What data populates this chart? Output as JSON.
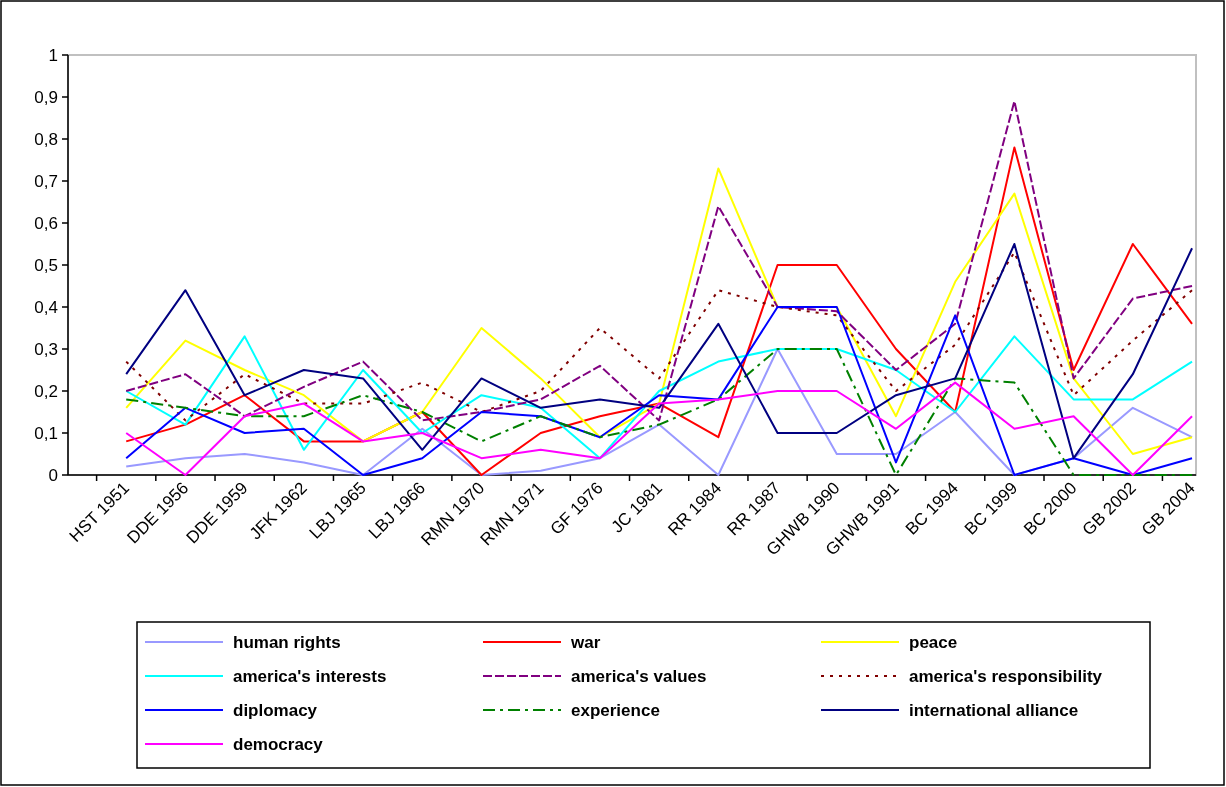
{
  "chart_data": {
    "type": "line",
    "categories": [
      "HST 1951",
      "DDE 1956",
      "DDE 1959",
      "JFK 1962",
      "LBJ 1965",
      "LBJ 1966",
      "RMN 1970",
      "RMN 1971",
      "GF 1976",
      "JC 1981",
      "RR 1984",
      "RR 1987",
      "GHWB 1990",
      "GHWB 1991",
      "BC 1994",
      "BC 1999",
      "BC 2000",
      "GB 2002",
      "GB 2004"
    ],
    "ylim": [
      0,
      1
    ],
    "yticks": [
      0,
      {
        "value": 0.1,
        "label": "0,1"
      },
      {
        "value": 0.2,
        "label": "0,2"
      },
      {
        "value": 0.3,
        "label": "0,3"
      },
      {
        "value": 0.4,
        "label": "0,4"
      },
      {
        "value": 0.5,
        "label": "0,5"
      },
      {
        "value": 0.6,
        "label": "0,6"
      },
      {
        "value": 0.7,
        "label": "0,7"
      },
      {
        "value": 0.8,
        "label": "0,8"
      },
      {
        "value": 0.9,
        "label": "0,9"
      },
      1
    ],
    "legend": "bottom",
    "grid": false,
    "marker": "none",
    "series": [
      {
        "name": "human rights",
        "color": "#9999ff",
        "line_style": "solid",
        "values": [
          0.02,
          0.04,
          0.05,
          0.03,
          0,
          0.11,
          0,
          0.01,
          0.04,
          0.12,
          0,
          0.3,
          0.05,
          0.05,
          0.15,
          0,
          0.04,
          0.16,
          0.09
        ]
      },
      {
        "name": "war",
        "color": "#ff0000",
        "line_style": "solid",
        "values": [
          0.08,
          0.12,
          0.19,
          0.08,
          0.08,
          0.15,
          0,
          0.1,
          0.14,
          0.17,
          0.09,
          0.5,
          0.5,
          0.3,
          0.15,
          0.78,
          0.25,
          0.55,
          0.36
        ]
      },
      {
        "name": "peace",
        "color": "#ffff00",
        "line_style": "solid",
        "values": [
          0.16,
          0.32,
          0.25,
          0.19,
          0.08,
          0.15,
          0.35,
          0.23,
          0.09,
          0.17,
          0.73,
          0.4,
          0.4,
          0.14,
          0.46,
          0.67,
          0.23,
          0.05,
          0.09
        ]
      },
      {
        "name": "america's interests",
        "color": "#00ffff",
        "line_style": "solid",
        "values": [
          0.2,
          0.12,
          0.33,
          0.06,
          0.25,
          0.1,
          0.19,
          0.16,
          0.04,
          0.2,
          0.27,
          0.3,
          0.3,
          0.25,
          0.15,
          0.33,
          0.18,
          0.18,
          0.27
        ]
      },
      {
        "name": "america's values",
        "color": "#800080",
        "line_style": "dashed",
        "values": [
          0.2,
          0.24,
          0.14,
          0.21,
          0.27,
          0.13,
          0.15,
          0.18,
          0.26,
          0.13,
          0.64,
          0.4,
          0.39,
          0.25,
          0.36,
          0.89,
          0.23,
          0.42,
          0.45
        ]
      },
      {
        "name": "america's responsibility",
        "color": "#800000",
        "line_style": "dotted",
        "values": [
          0.27,
          0.13,
          0.24,
          0.17,
          0.17,
          0.22,
          0.15,
          0.2,
          0.35,
          0.23,
          0.44,
          0.4,
          0.38,
          0.2,
          0.31,
          0.53,
          0.19,
          0.32,
          0.44
        ]
      },
      {
        "name": "diplomacy",
        "color": "#0000ff",
        "line_style": "solid",
        "values": [
          0.04,
          0.16,
          0.1,
          0.11,
          0,
          0.04,
          0.15,
          0.14,
          0.09,
          0.19,
          0.18,
          0.4,
          0.4,
          0.03,
          0.38,
          0,
          0.04,
          0,
          0.04
        ]
      },
      {
        "name": "experience",
        "color": "#008000",
        "line_style": "dashdot",
        "values": [
          0.18,
          0.16,
          0.14,
          0.14,
          0.19,
          0.15,
          0.08,
          0.14,
          0.09,
          0.12,
          0.18,
          0.3,
          0.3,
          0,
          0.23,
          0.22,
          0,
          0,
          0
        ]
      },
      {
        "name": "international alliance",
        "color": "#000080",
        "line_style": "solid",
        "values": [
          0.24,
          0.44,
          0.19,
          0.25,
          0.23,
          0.06,
          0.23,
          0.16,
          0.18,
          0.16,
          0.36,
          0.1,
          0.1,
          0.19,
          0.23,
          0.55,
          0.04,
          0.24,
          0.54
        ]
      },
      {
        "name": "democracy",
        "color": "#ff00ff",
        "line_style": "solid",
        "values": [
          0.1,
          0,
          0.14,
          0.17,
          0.08,
          0.1,
          0.04,
          0.06,
          0.04,
          0.17,
          0.18,
          0.2,
          0.2,
          0.11,
          0.22,
          0.11,
          0.14,
          0,
          0.14
        ]
      }
    ]
  }
}
